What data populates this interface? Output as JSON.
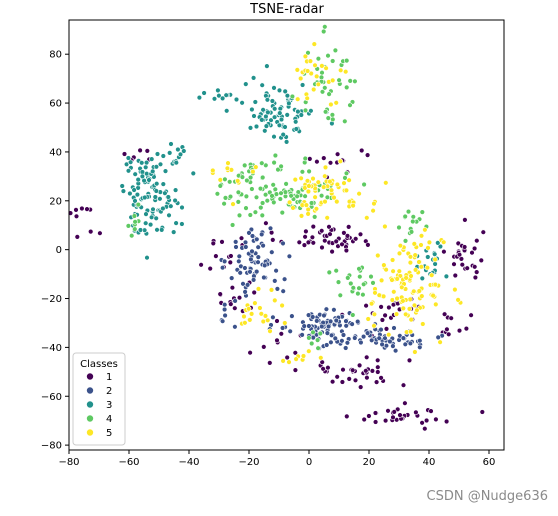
{
  "chart_data": {
    "type": "scatter",
    "title": "TSNE-radar",
    "xlabel": "",
    "ylabel": "",
    "xlim": [
      -80,
      65
    ],
    "ylim": [
      -82,
      94
    ],
    "xticks": [
      -80,
      -60,
      -40,
      -20,
      0,
      20,
      40,
      60
    ],
    "yticks": [
      -80,
      -60,
      -40,
      -20,
      0,
      20,
      40,
      60,
      80
    ],
    "xtick_labels": [
      "−80",
      "−60",
      "−40",
      "−20",
      "0",
      "20",
      "40",
      "60"
    ],
    "ytick_labels": [
      "−80",
      "−60",
      "−40",
      "−20",
      "0",
      "20",
      "40",
      "60",
      "80"
    ],
    "grid": false,
    "legend": {
      "title": "Classes",
      "placement": "lower-left"
    },
    "series": [
      {
        "name": "1",
        "color": "#440154",
        "clusters": [
          {
            "cx": 5,
            "cy": 5,
            "sx": 8,
            "sy": 3,
            "n": 45
          },
          {
            "cx": -30,
            "cy": 0,
            "sx": 4,
            "sy": 5,
            "n": 12
          },
          {
            "cx": 52,
            "cy": -3,
            "sx": 3,
            "sy": 6,
            "n": 28
          },
          {
            "cx": 15,
            "cy": -50,
            "sx": 9,
            "sy": 3,
            "n": 35
          },
          {
            "cx": 32,
            "cy": -68,
            "sx": 8,
            "sy": 2,
            "n": 30
          },
          {
            "cx": 28,
            "cy": -25,
            "sx": 6,
            "sy": 4,
            "n": 20
          },
          {
            "cx": 48,
            "cy": -30,
            "sx": 4,
            "sy": 3,
            "n": 10
          },
          {
            "cx": -25,
            "cy": -20,
            "sx": 4,
            "sy": 5,
            "n": 14
          },
          {
            "cx": -75,
            "cy": 15,
            "sx": 3,
            "sy": 8,
            "n": 9
          },
          {
            "cx": 12,
            "cy": 36,
            "sx": 8,
            "sy": 3,
            "n": 12
          },
          {
            "cx": -10,
            "cy": -40,
            "sx": 5,
            "sy": 4,
            "n": 10
          },
          {
            "cx": -55,
            "cy": 38,
            "sx": 3,
            "sy": 2,
            "n": 6
          }
        ]
      },
      {
        "name": "2",
        "color": "#3b528b",
        "clusters": [
          {
            "cx": -18,
            "cy": -5,
            "sx": 4.5,
            "sy": 7,
            "n": 70
          },
          {
            "cx": 5,
            "cy": -30,
            "sx": 7,
            "sy": 3,
            "n": 60
          },
          {
            "cx": 22,
            "cy": -36,
            "sx": 12,
            "sy": 2.5,
            "n": 80
          },
          {
            "cx": -28,
            "cy": -28,
            "sx": 3,
            "sy": 3,
            "n": 6
          }
        ]
      },
      {
        "name": "3",
        "color": "#21918c",
        "clusters": [
          {
            "cx": -10,
            "cy": 57,
            "sx": 6,
            "sy": 6,
            "n": 90
          },
          {
            "cx": -53,
            "cy": 23,
            "sx": 5,
            "sy": 8,
            "n": 110
          },
          {
            "cx": -44,
            "cy": 37,
            "sx": 3,
            "sy": 3,
            "n": 10
          },
          {
            "cx": 40,
            "cy": -5,
            "sx": 2.5,
            "sy": 5,
            "n": 20
          },
          {
            "cx": -30,
            "cy": 64,
            "sx": 4,
            "sy": 2,
            "n": 8
          }
        ]
      },
      {
        "name": "4",
        "color": "#5ec962",
        "clusters": [
          {
            "cx": -10,
            "cy": 25,
            "sx": 10,
            "sy": 6,
            "n": 110
          },
          {
            "cx": 6,
            "cy": 68,
            "sx": 5,
            "sy": 9,
            "n": 40
          },
          {
            "cx": 36,
            "cy": 12,
            "sx": 4,
            "sy": 3,
            "n": 14
          },
          {
            "cx": 15,
            "cy": -15,
            "sx": 4,
            "sy": 5,
            "n": 24
          },
          {
            "cx": -58,
            "cy": 10,
            "sx": 3,
            "sy": 3,
            "n": 8
          },
          {
            "cx": 3,
            "cy": -35,
            "sx": 3,
            "sy": 3,
            "n": 6
          }
        ]
      },
      {
        "name": "5",
        "color": "#fde725",
        "clusters": [
          {
            "cx": 33,
            "cy": -15,
            "sx": 6,
            "sy": 10,
            "n": 110
          },
          {
            "cx": 5,
            "cy": 22,
            "sx": 8,
            "sy": 6,
            "n": 60
          },
          {
            "cx": 5,
            "cy": 73,
            "sx": 4,
            "sy": 5,
            "n": 25
          },
          {
            "cx": -18,
            "cy": -25,
            "sx": 5,
            "sy": 4,
            "n": 20
          },
          {
            "cx": -2,
            "cy": -45,
            "sx": 3,
            "sy": 2,
            "n": 8
          },
          {
            "cx": -25,
            "cy": 30,
            "sx": 4,
            "sy": 5,
            "n": 12
          }
        ]
      }
    ]
  },
  "watermark": "CSDN @Nudge636"
}
